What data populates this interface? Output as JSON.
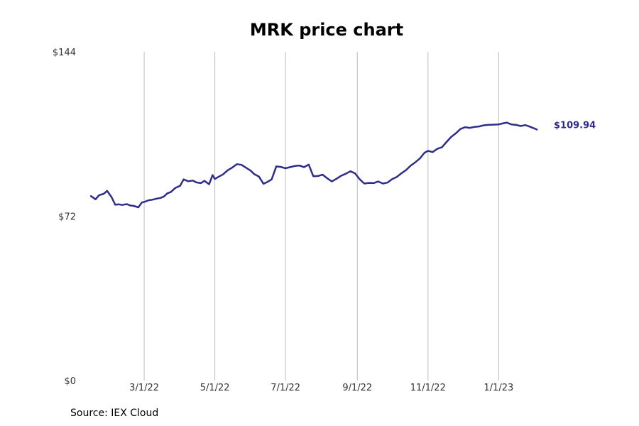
{
  "chart_data": {
    "type": "line",
    "title": "MRK price chart",
    "xlabel": "",
    "ylabel": "",
    "ylim": [
      0,
      144
    ],
    "xlim": [
      "2022-01-06",
      "2023-03-08"
    ],
    "y_ticks": [
      {
        "value": 0,
        "label": "$0"
      },
      {
        "value": 72,
        "label": "$72"
      },
      {
        "value": 144,
        "label": "$144"
      }
    ],
    "x_ticks": [
      {
        "value": "2022-03-01",
        "label": "3/1/22"
      },
      {
        "value": "2022-05-01",
        "label": "5/1/22"
      },
      {
        "value": "2022-07-01",
        "label": "7/1/22"
      },
      {
        "value": "2022-09-01",
        "label": "9/1/22"
      },
      {
        "value": "2022-11-01",
        "label": "11/1/22"
      },
      {
        "value": "2023-01-01",
        "label": "1/1/23"
      }
    ],
    "grid": "vertical",
    "series": [
      {
        "color": "#2e2d8a",
        "last_value_label": "$109.94",
        "x": [
          "2022-01-14",
          "2022-01-18",
          "2022-01-21",
          "2022-01-25",
          "2022-01-28",
          "2022-02-01",
          "2022-02-04",
          "2022-02-07",
          "2022-02-10",
          "2022-02-14",
          "2022-02-17",
          "2022-02-20",
          "2022-02-24",
          "2022-02-27",
          "2022-03-02",
          "2022-03-05",
          "2022-03-08",
          "2022-03-12",
          "2022-03-15",
          "2022-03-18",
          "2022-03-21",
          "2022-03-24",
          "2022-03-28",
          "2022-04-01",
          "2022-04-04",
          "2022-04-08",
          "2022-04-12",
          "2022-04-15",
          "2022-04-19",
          "2022-04-22",
          "2022-04-26",
          "2022-04-29",
          "2022-05-01",
          "2022-05-04",
          "2022-05-08",
          "2022-05-12",
          "2022-05-16",
          "2022-05-20",
          "2022-05-24",
          "2022-05-28",
          "2022-06-01",
          "2022-06-04",
          "2022-06-08",
          "2022-06-12",
          "2022-06-15",
          "2022-06-19",
          "2022-06-23",
          "2022-06-27",
          "2022-07-01",
          "2022-07-05",
          "2022-07-09",
          "2022-07-13",
          "2022-07-17",
          "2022-07-21",
          "2022-07-25",
          "2022-07-29",
          "2022-08-02",
          "2022-08-06",
          "2022-08-10",
          "2022-08-14",
          "2022-08-18",
          "2022-08-22",
          "2022-08-26",
          "2022-08-30",
          "2022-09-03",
          "2022-09-07",
          "2022-09-11",
          "2022-09-15",
          "2022-09-19",
          "2022-09-23",
          "2022-09-27",
          "2022-10-01",
          "2022-10-05",
          "2022-10-09",
          "2022-10-13",
          "2022-10-17",
          "2022-10-21",
          "2022-10-25",
          "2022-10-29",
          "2022-11-01",
          "2022-11-05",
          "2022-11-09",
          "2022-11-13",
          "2022-11-17",
          "2022-11-21",
          "2022-11-25",
          "2022-11-29",
          "2022-12-03",
          "2022-12-07",
          "2022-12-11",
          "2022-12-15",
          "2022-12-19",
          "2022-12-23",
          "2022-12-27",
          "2023-01-01",
          "2023-01-04",
          "2023-01-08",
          "2023-01-12",
          "2023-01-16",
          "2023-01-20",
          "2023-01-24",
          "2023-01-27",
          "2023-01-31",
          "2023-02-03"
        ],
        "values": [
          80.8,
          79.4,
          81.2,
          81.8,
          83.1,
          80.2,
          77.0,
          77.2,
          76.9,
          77.3,
          76.7,
          76.5,
          75.9,
          78.0,
          78.4,
          79.0,
          79.2,
          79.7,
          80.0,
          80.6,
          82.0,
          82.6,
          84.4,
          85.3,
          88.1,
          87.3,
          87.6,
          86.8,
          86.5,
          87.5,
          86.0,
          90.0,
          88.3,
          89.2,
          90.3,
          92.1,
          93.3,
          94.8,
          94.5,
          93.2,
          91.9,
          90.4,
          89.4,
          86.2,
          86.9,
          88.1,
          93.8,
          93.6,
          93.0,
          93.5,
          94.0,
          94.2,
          93.5,
          94.6,
          89.5,
          89.6,
          90.2,
          88.6,
          87.2,
          88.4,
          89.7,
          90.6,
          91.7,
          90.8,
          88.2,
          86.3,
          86.6,
          86.5,
          87.2,
          86.3,
          86.7,
          88.2,
          89.2,
          90.8,
          92.2,
          94.1,
          95.6,
          97.3,
          99.8,
          100.6,
          100.1,
          101.5,
          102.2,
          104.5,
          106.7,
          108.3,
          110.2,
          111.0,
          110.7,
          111.1,
          111.3,
          111.8,
          112.0,
          112.1,
          112.2,
          112.6,
          113.0,
          112.2,
          112.0,
          111.5,
          111.9,
          111.4,
          110.6,
          109.94
        ]
      }
    ]
  },
  "source_note": "Source: IEX Cloud"
}
